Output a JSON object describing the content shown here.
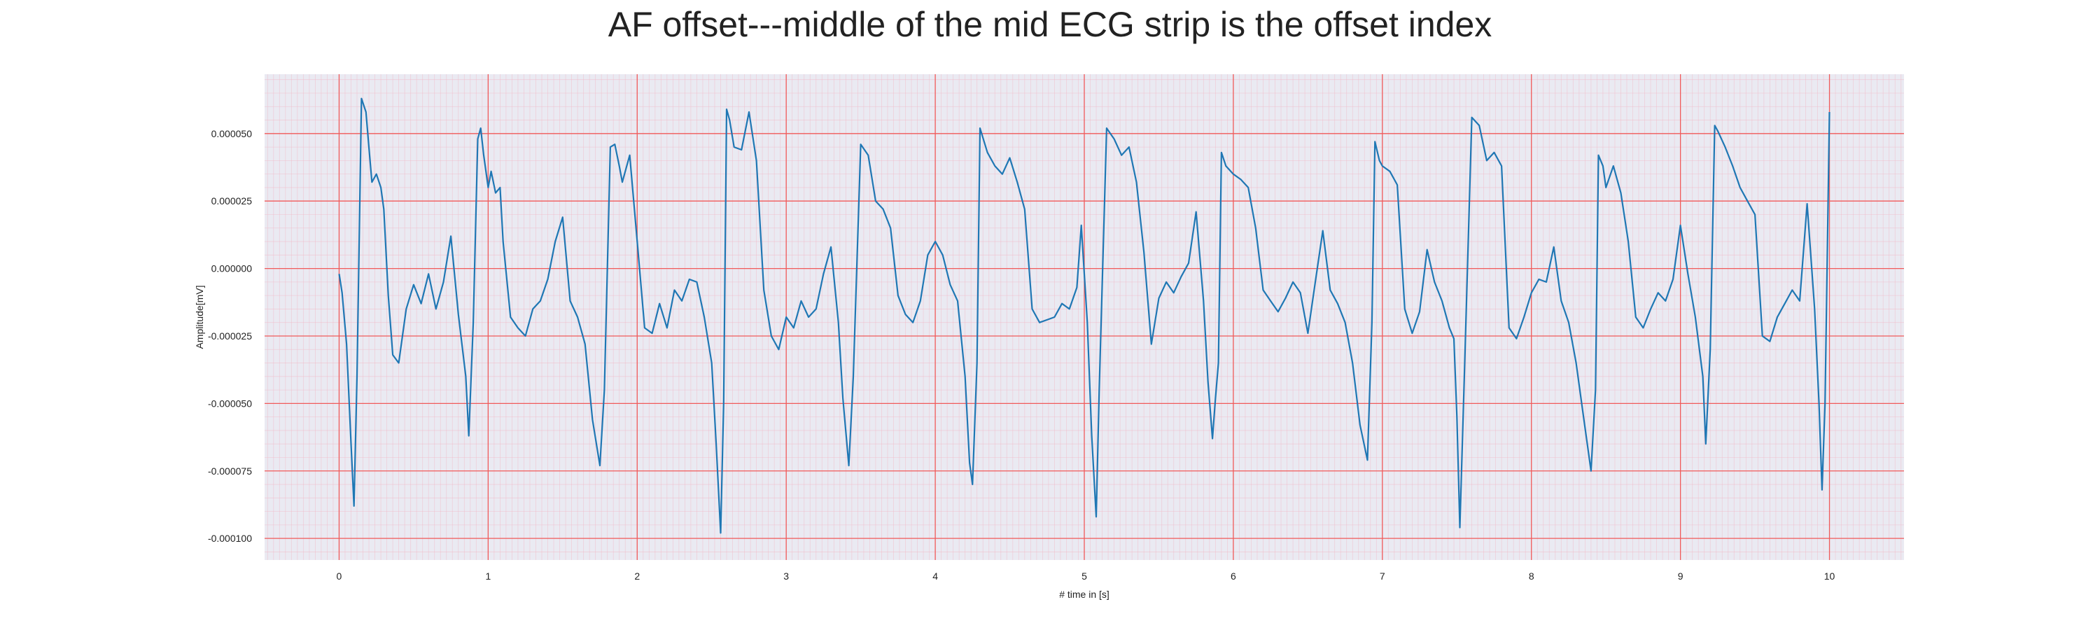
{
  "chart_data": {
    "type": "line",
    "title": "AF offset---middle of the mid ECG strip is the offset index",
    "xlabel": "# time in [s]",
    "ylabel": "Amplitude[mV]",
    "xlim": [
      -0.5,
      10.5
    ],
    "ylim": [
      -0.000108,
      7.2e-05
    ],
    "xticks": [
      0,
      1,
      2,
      3,
      4,
      5,
      6,
      7,
      8,
      9,
      10
    ],
    "yticks": [
      5e-05,
      2.5e-05,
      0.0,
      -2.5e-05,
      -5e-05,
      -7.5e-05,
      -0.0001
    ],
    "ytick_labels": [
      "0.000050",
      "0.000025",
      "0.000000",
      "-0.000025",
      "-0.000050",
      "-0.000075",
      "-0.000100"
    ],
    "grid": true,
    "colors": {
      "line": "#1f77b4",
      "plot_background": "#eaeaf2",
      "major_grid": "#f05a5a",
      "minor_grid": "#f2b8c6"
    },
    "series": [
      {
        "x": [
          0.0,
          0.02,
          0.05,
          0.08,
          0.1,
          0.12,
          0.15,
          0.18,
          0.2,
          0.22,
          0.25,
          0.28,
          0.3,
          0.33,
          0.36,
          0.4,
          0.45,
          0.5,
          0.55,
          0.6,
          0.65,
          0.7,
          0.75,
          0.8,
          0.85,
          0.87,
          0.9,
          0.93,
          0.95,
          0.97,
          1.0,
          1.02,
          1.05,
          1.08,
          1.1,
          1.15,
          1.2,
          1.25,
          1.3,
          1.35,
          1.4,
          1.45,
          1.5,
          1.55,
          1.6,
          1.65,
          1.7,
          1.75,
          1.78,
          1.82,
          1.85,
          1.88,
          1.9,
          1.95,
          2.0,
          2.05,
          2.1,
          2.15,
          2.2,
          2.25,
          2.3,
          2.35,
          2.4,
          2.45,
          2.5,
          2.53,
          2.56,
          2.58,
          2.6,
          2.62,
          2.65,
          2.7,
          2.75,
          2.8,
          2.85,
          2.9,
          2.95,
          3.0,
          3.05,
          3.1,
          3.15,
          3.2,
          3.25,
          3.3,
          3.35,
          3.38,
          3.42,
          3.45,
          3.5,
          3.55,
          3.6,
          3.65,
          3.7,
          3.75,
          3.8,
          3.85,
          3.9,
          3.95,
          4.0,
          4.05,
          4.1,
          4.15,
          4.2,
          4.23,
          4.25,
          4.28,
          4.3,
          4.35,
          4.4,
          4.45,
          4.5,
          4.55,
          4.6,
          4.65,
          4.7,
          4.75,
          4.8,
          4.85,
          4.9,
          4.95,
          4.98,
          5.02,
          5.05,
          5.08,
          5.1,
          5.15,
          5.2,
          5.25,
          5.3,
          5.35,
          5.4,
          5.45,
          5.5,
          5.55,
          5.6,
          5.65,
          5.7,
          5.75,
          5.8,
          5.83,
          5.86,
          5.88,
          5.9,
          5.92,
          5.95,
          6.0,
          6.05,
          6.1,
          6.15,
          6.2,
          6.25,
          6.3,
          6.35,
          6.4,
          6.45,
          6.5,
          6.55,
          6.6,
          6.65,
          6.7,
          6.75,
          6.8,
          6.85,
          6.9,
          6.93,
          6.95,
          6.98,
          7.0,
          7.05,
          7.1,
          7.15,
          7.2,
          7.25,
          7.3,
          7.35,
          7.4,
          7.45,
          7.48,
          7.5,
          7.52,
          7.55,
          7.6,
          7.65,
          7.7,
          7.75,
          7.8,
          7.85,
          7.9,
          7.95,
          8.0,
          8.05,
          8.1,
          8.15,
          8.2,
          8.25,
          8.3,
          8.35,
          8.4,
          8.43,
          8.45,
          8.48,
          8.5,
          8.55,
          8.6,
          8.65,
          8.7,
          8.75,
          8.8,
          8.85,
          8.9,
          8.95,
          9.0,
          9.05,
          9.1,
          9.15,
          9.17,
          9.2,
          9.23,
          9.25,
          9.3,
          9.35,
          9.4,
          9.45,
          9.5,
          9.55,
          9.6,
          9.65,
          9.7,
          9.75,
          9.8,
          9.85,
          9.9,
          9.93,
          9.95,
          9.97,
          10.0
        ],
        "y": [
          -2e-06,
          -9e-06,
          -2.8e-05,
          -6.5e-05,
          -8.8e-05,
          -4e-05,
          6.3e-05,
          5.8e-05,
          4.5e-05,
          3.2e-05,
          3.5e-05,
          3e-05,
          2.2e-05,
          -1e-05,
          -3.2e-05,
          -3.5e-05,
          -1.5e-05,
          -6e-06,
          -1.3e-05,
          -2e-06,
          -1.5e-05,
          -5e-06,
          1.2e-05,
          -1.7e-05,
          -4e-05,
          -6.2e-05,
          -2e-05,
          4.8e-05,
          5.2e-05,
          4.2e-05,
          3e-05,
          3.6e-05,
          2.8e-05,
          3e-05,
          1e-05,
          -1.8e-05,
          -2.2e-05,
          -2.5e-05,
          -1.5e-05,
          -1.2e-05,
          -4e-06,
          1e-05,
          1.9e-05,
          -1.2e-05,
          -1.8e-05,
          -2.8e-05,
          -5.6e-05,
          -7.3e-05,
          -4.5e-05,
          4.5e-05,
          4.6e-05,
          3.8e-05,
          3.2e-05,
          4.2e-05,
          1e-05,
          -2.2e-05,
          -2.4e-05,
          -1.3e-05,
          -2.2e-05,
          -8e-06,
          -1.2e-05,
          -4e-06,
          -5e-06,
          -1.8e-05,
          -3.5e-05,
          -6.5e-05,
          -9.8e-05,
          -5e-05,
          5.9e-05,
          5.5e-05,
          4.5e-05,
          4.4e-05,
          5.8e-05,
          4e-05,
          -8e-06,
          -2.5e-05,
          -3e-05,
          -1.8e-05,
          -2.2e-05,
          -1.2e-05,
          -1.8e-05,
          -1.5e-05,
          -2e-06,
          8e-06,
          -2e-05,
          -4.8e-05,
          -7.3e-05,
          -4e-05,
          4.6e-05,
          4.2e-05,
          2.5e-05,
          2.2e-05,
          1.5e-05,
          -1e-05,
          -1.7e-05,
          -2e-05,
          -1.2e-05,
          5e-06,
          1e-05,
          5e-06,
          -6e-06,
          -1.2e-05,
          -4e-05,
          -7.2e-05,
          -8e-05,
          -3.5e-05,
          5.2e-05,
          4.3e-05,
          3.8e-05,
          3.5e-05,
          4.1e-05,
          3.2e-05,
          2.2e-05,
          -1.5e-05,
          -2e-05,
          -1.9e-05,
          -1.8e-05,
          -1.3e-05,
          -1.5e-05,
          -7e-06,
          1.6e-05,
          -2e-05,
          -6.2e-05,
          -9.2e-05,
          -4.5e-05,
          5.2e-05,
          4.8e-05,
          4.2e-05,
          4.5e-05,
          3.2e-05,
          6e-06,
          -2.8e-05,
          -1.1e-05,
          -5e-06,
          -9e-06,
          -3e-06,
          2e-06,
          2.1e-05,
          -1.2e-05,
          -4.2e-05,
          -6.3e-05,
          -4.8e-05,
          -3.5e-05,
          4.3e-05,
          3.8e-05,
          3.5e-05,
          3.3e-05,
          3e-05,
          1.5e-05,
          -8e-06,
          -1.2e-05,
          -1.6e-05,
          -1.1e-05,
          -5e-06,
          -9e-06,
          -2.4e-05,
          -5e-06,
          1.4e-05,
          -8e-06,
          -1.3e-05,
          -2e-05,
          -3.5e-05,
          -5.8e-05,
          -7.1e-05,
          -2e-05,
          4.7e-05,
          4e-05,
          3.8e-05,
          3.6e-05,
          3.1e-05,
          -1.5e-05,
          -2.4e-05,
          -1.6e-05,
          7e-06,
          -5e-06,
          -1.2e-05,
          -2.2e-05,
          -2.6e-05,
          -5.5e-05,
          -9.6e-05,
          -4e-05,
          5.6e-05,
          5.3e-05,
          4e-05,
          4.3e-05,
          3.8e-05,
          -2.2e-05,
          -2.6e-05,
          -1.8e-05,
          -9e-06,
          -4e-06,
          -5e-06,
          8e-06,
          -1.2e-05,
          -2e-05,
          -3.5e-05,
          -5.5e-05,
          -7.5e-05,
          -4.5e-05,
          4.2e-05,
          3.8e-05,
          3e-05,
          3.8e-05,
          2.8e-05,
          1e-05,
          -1.8e-05,
          -2.2e-05,
          -1.5e-05,
          -9e-06,
          -1.2e-05,
          -4e-06,
          1.6e-05,
          -2e-06,
          -1.8e-05,
          -4e-05,
          -6.5e-05,
          -3e-05,
          5.3e-05,
          5.1e-05,
          4.5e-05,
          3.8e-05,
          3e-05,
          2.5e-05,
          2e-05,
          -2.5e-05,
          -2.7e-05,
          -1.8e-05,
          -1.3e-05,
          -8e-06,
          -1.2e-05,
          2.4e-05,
          -1.5e-05,
          -5e-05,
          -8.2e-05,
          -5e-05,
          5.8e-05
        ]
      }
    ]
  }
}
